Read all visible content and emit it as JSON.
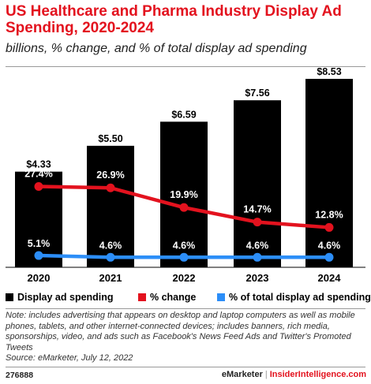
{
  "header": {
    "title": "US Healthcare and Pharma Industry Display Ad Spending, 2020-2024",
    "subtitle": "billions, % change, and % of total display ad spending"
  },
  "legend": [
    {
      "label": "Display ad spending",
      "color": "#000000"
    },
    {
      "label": "% change",
      "color": "#e3121e"
    },
    {
      "label": "% of total display ad spending",
      "color": "#2c8ef8"
    }
  ],
  "chart_data": {
    "type": "bar",
    "categories": [
      "2020",
      "2021",
      "2022",
      "2023",
      "2024"
    ],
    "series": [
      {
        "name": "Display ad spending",
        "type": "bar",
        "color": "#000000",
        "values": [
          4.33,
          5.5,
          6.59,
          7.56,
          8.53
        ],
        "labels": [
          "$4.33",
          "$5.50",
          "$6.59",
          "$7.56",
          "$8.53"
        ]
      },
      {
        "name": "% change",
        "type": "line",
        "color": "#e3121e",
        "values": [
          27.4,
          26.9,
          19.9,
          14.7,
          12.8
        ],
        "labels": [
          "27.4%",
          "26.9%",
          "19.9%",
          "14.7%",
          "12.8%"
        ]
      },
      {
        "name": "% of total display ad spending",
        "type": "line",
        "color": "#2c8ef8",
        "values": [
          5.1,
          4.6,
          4.6,
          4.6,
          4.6
        ],
        "labels": [
          "5.1%",
          "4.6%",
          "4.6%",
          "4.6%",
          "4.6%"
        ]
      }
    ],
    "ylim": [
      0,
      8.53
    ]
  },
  "footer": {
    "note": "Note: includes advertising that appears on desktop and laptop computers as well as mobile phones, tablets, and other internet-connected devices; includes banners, rich media, sponsorships, video, and ads such as Facebook's News Feed Ads and Twitter's Promoted Tweets",
    "source": "Source: eMarketer, July 12, 2022",
    "chart_id": "276888",
    "brand": "eMarketer",
    "separator": "|",
    "site": "InsiderIntelligence.com"
  }
}
